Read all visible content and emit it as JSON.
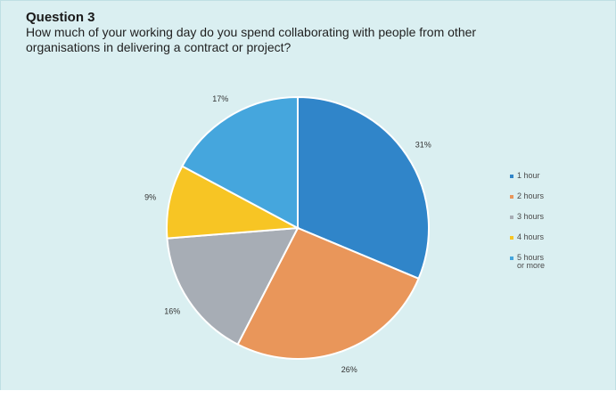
{
  "header": {
    "title": "Question 3",
    "question": "How much of your working day do you spend collaborating with people from other organisations in delivering a contract or project?"
  },
  "chart_data": {
    "type": "pie",
    "title": "Question 3",
    "subtitle": "How much of your working day do you spend collaborating with people from other organisations in delivering a contract or project?",
    "legend_position": "right",
    "slices": [
      {
        "label": "1 hour",
        "legend_lines": [
          "1 hour"
        ],
        "value": 31,
        "value_label": "31%",
        "color": "#3085c9"
      },
      {
        "label": "2 hours",
        "legend_lines": [
          "2 hours"
        ],
        "value": 26,
        "value_label": "26%",
        "color": "#e9965a"
      },
      {
        "label": "3 hours",
        "legend_lines": [
          "3 hours"
        ],
        "value": 16,
        "value_label": "16%",
        "color": "#a7adb5"
      },
      {
        "label": "4 hours",
        "legend_lines": [
          "4 hours"
        ],
        "value": 9,
        "value_label": "9%",
        "color": "#f7c524"
      },
      {
        "label": "5 hours or more",
        "legend_lines": [
          "5 hours",
          "or more"
        ],
        "value": 17,
        "value_label": "17%",
        "color": "#45a6dd"
      }
    ]
  }
}
